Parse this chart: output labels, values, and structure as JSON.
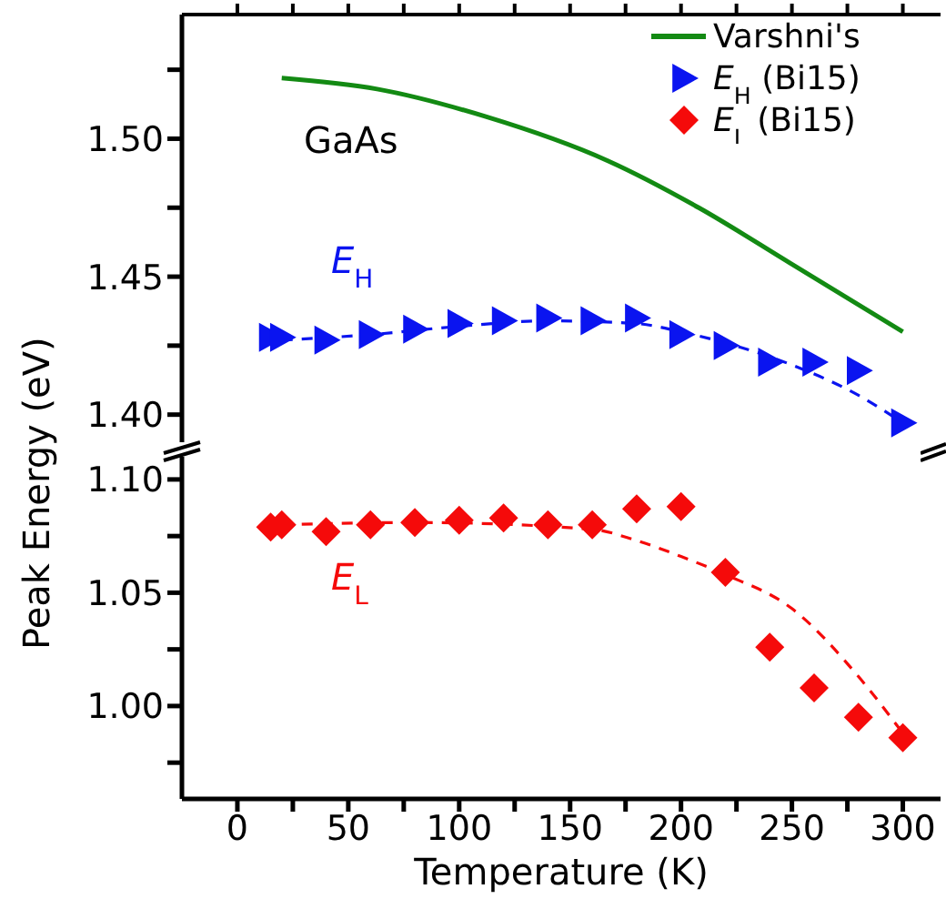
{
  "chart_data": [
    {
      "type": "line",
      "annotations": [
        "GaAs",
        "E$_{H}$"
      ],
      "xlim": [
        -25,
        317
      ],
      "xticks": [
        0,
        {
          "value": 25,
          "label": null
        },
        50,
        {
          "value": 75,
          "label": null
        },
        100,
        {
          "value": 125,
          "label": null
        },
        150,
        {
          "value": 175,
          "label": null
        },
        200,
        {
          "value": 225,
          "label": null
        },
        250,
        {
          "value": 275,
          "label": null
        },
        300
      ],
      "ylim": [
        1.39,
        1.545
      ],
      "yticks": [
        {
          "value": 1.4,
          "label": "1.40"
        },
        {
          "value": 1.425,
          "label": null
        },
        {
          "value": 1.45,
          "label": "1.45"
        },
        {
          "value": 1.475,
          "label": null
        },
        {
          "value": 1.5,
          "label": "1.50"
        },
        {
          "value": 1.525,
          "label": null
        }
      ],
      "tick_labels": "y",
      "legend": "top right",
      "series": [
        {
          "name": "Varshni's",
          "color": "#138a13",
          "line_style": "solid",
          "marker": "none",
          "x": [
            20,
            63,
            112,
            167,
            208,
            249,
            300
          ],
          "values": [
            1.522,
            1.518,
            1.508,
            1.492,
            1.475,
            1.455,
            1.43
          ]
        },
        {
          "name": "E$_{H}$ (Bi15)",
          "type": "scatter",
          "color": "#0a14f0",
          "marker": "triangle",
          "x": [
            15,
            20,
            40,
            60,
            80,
            100,
            120,
            140,
            160,
            180,
            200,
            220,
            240,
            260,
            280,
            300
          ],
          "values": [
            1.428,
            1.428,
            1.427,
            1.429,
            1.431,
            1.433,
            1.434,
            1.435,
            1.434,
            1.435,
            1.429,
            1.425,
            1.419,
            1.419,
            1.416,
            1.397
          ]
        },
        {
          "color": "#0a14f0",
          "line_style": "dashed",
          "marker": "none",
          "x": [
            20,
            60,
            100,
            140,
            180,
            200,
            220,
            250,
            280,
            300
          ],
          "values": [
            1.427,
            1.429,
            1.432,
            1.434,
            1.433,
            1.43,
            1.426,
            1.418,
            1.407,
            1.397
          ]
        }
      ]
    },
    {
      "type": "line",
      "ylabel": "Peak Energy (eV)",
      "xlabel": "Temperature (K)",
      "annotations": [
        "E$_{L}$"
      ],
      "xlim": [
        -25,
        317
      ],
      "xticks": [
        0,
        {
          "value": 25,
          "label": null
        },
        50,
        {
          "value": 75,
          "label": null
        },
        100,
        {
          "value": 125,
          "label": null
        },
        150,
        {
          "value": 175,
          "label": null
        },
        200,
        {
          "value": 225,
          "label": null
        },
        250,
        {
          "value": 275,
          "label": null
        },
        300
      ],
      "ylim": [
        0.959,
        1.11
      ],
      "yticks": [
        {
          "value": 0.975,
          "label": null
        },
        {
          "value": 1.0,
          "label": "1.00"
        },
        {
          "value": 1.025,
          "label": null
        },
        {
          "value": 1.05,
          "label": "1.05"
        },
        {
          "value": 1.075,
          "label": null
        },
        {
          "value": 1.1,
          "label": "1.10"
        }
      ],
      "series": [
        {
          "name": "E$_{L}$ (Bi15)",
          "type": "scatter",
          "color": "#f50a0a",
          "marker": "diamond",
          "x": [
            15,
            20,
            40,
            60,
            80,
            100,
            120,
            140,
            160,
            180,
            200,
            220,
            240,
            260,
            280,
            300
          ],
          "values": [
            1.079,
            1.08,
            1.077,
            1.08,
            1.081,
            1.082,
            1.083,
            1.08,
            1.08,
            1.087,
            1.088,
            1.059,
            1.026,
            1.008,
            0.995,
            0.986
          ]
        },
        {
          "color": "#f50a0a",
          "line_style": "dashed",
          "marker": "none",
          "x": [
            20,
            80,
            160,
            180,
            200,
            220,
            250,
            280,
            300
          ],
          "values": [
            1.08,
            1.081,
            1.078,
            1.073,
            1.066,
            1.058,
            1.043,
            1.013,
            0.988
          ]
        }
      ]
    }
  ]
}
